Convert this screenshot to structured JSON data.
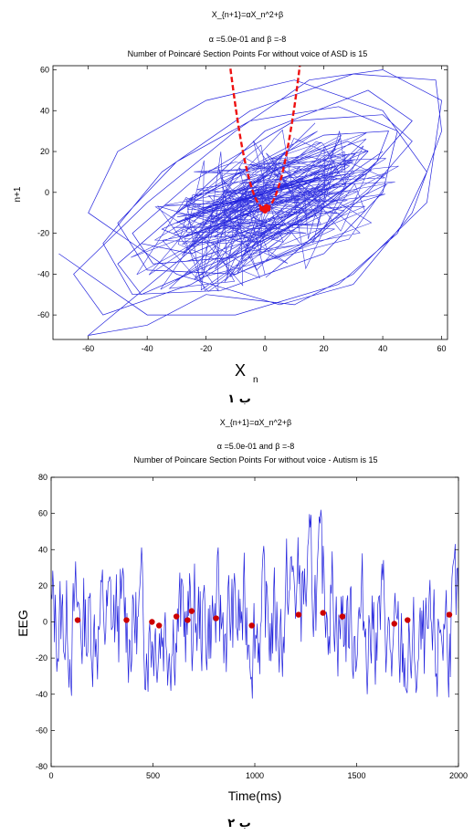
{
  "chart_data": [
    {
      "type": "line",
      "title_lines": [
        "X_{n+1}=αX_n^2+β",
        "α =5.0e-01 and  β =-8",
        "Number of Poincaré Section Points For without voice of  ASD is 15"
      ],
      "xlabel": "X",
      "xlabel_sub": "n",
      "ylabel": "n+1",
      "xlim": [
        -72,
        62
      ],
      "ylim": [
        -72,
        62
      ],
      "xticks": [
        -60,
        -40,
        -20,
        0,
        20,
        40,
        60
      ],
      "yticks": [
        -60,
        -40,
        -20,
        0,
        20,
        40,
        60
      ],
      "series_colors": {
        "trajectory": "#2222dd",
        "map": "#ee1111"
      },
      "map": {
        "alpha": 0.5,
        "beta": -8
      },
      "trajectory": {
        "x": [
          -70,
          -40,
          -10,
          25,
          45,
          55,
          40,
          10,
          -20,
          -50,
          -60,
          -30,
          5,
          30,
          50,
          60,
          58,
          30,
          -5,
          -35,
          -55,
          -45,
          -15,
          20,
          40,
          45,
          25,
          -5,
          -30,
          -50,
          -40,
          -10,
          15,
          35,
          50,
          40,
          10,
          -25,
          -45,
          -38,
          -12,
          18,
          38,
          42,
          20,
          -8,
          -30,
          -42,
          -25,
          0,
          25,
          35,
          28,
          5,
          -15,
          -35,
          -28,
          -5,
          15,
          30,
          22,
          0,
          -20,
          -30,
          -18,
          5,
          25,
          20,
          -2,
          -22,
          -12,
          8,
          18,
          10,
          -8,
          -15,
          -5,
          5,
          10,
          2,
          -3,
          -60,
          -40,
          -20,
          10,
          30,
          55,
          60,
          40,
          15,
          -10,
          -40,
          -65,
          -55,
          -25,
          5,
          35,
          50,
          35,
          0,
          -30,
          -50,
          -42,
          -10,
          20,
          40
        ],
        "y": [
          -30,
          -60,
          -60,
          -45,
          -20,
          10,
          40,
          55,
          45,
          20,
          -10,
          -40,
          -55,
          -45,
          -10,
          30,
          55,
          58,
          40,
          10,
          -25,
          -50,
          -48,
          -30,
          0,
          30,
          42,
          35,
          15,
          -15,
          -38,
          -40,
          -25,
          0,
          25,
          38,
          35,
          5,
          -20,
          -35,
          -32,
          -10,
          15,
          30,
          28,
          10,
          -10,
          -25,
          -30,
          -15,
          5,
          20,
          25,
          12,
          -5,
          -18,
          -22,
          -10,
          5,
          15,
          12,
          0,
          -10,
          -15,
          -8,
          2,
          10,
          8,
          0,
          -8,
          -5,
          2,
          6,
          3,
          -4,
          -6,
          -2,
          2,
          4,
          1,
          -2,
          -70,
          -65,
          -50,
          -55,
          -40,
          -5,
          45,
          60,
          55,
          30,
          -5,
          -40,
          -60,
          -45,
          -20,
          10,
          35,
          50,
          30,
          -10,
          -35,
          -50,
          -30,
          0,
          20
        ]
      }
    },
    {
      "type": "line",
      "title_lines": [
        "X_{n+1}=αX_n^2+β",
        "α =5.0e-01 and  β =-8",
        "Number of Poincare Section Points For without voice - Autism is 15"
      ],
      "xlabel": "Time(ms)",
      "ylabel": "EEG",
      "xlim": [
        0,
        2000
      ],
      "ylim": [
        -80,
        80
      ],
      "xticks": [
        0,
        500,
        1000,
        1500,
        2000
      ],
      "yticks": [
        -80,
        -60,
        -40,
        -20,
        0,
        20,
        40,
        60,
        80
      ],
      "series_colors": {
        "eeg": "#2222dd",
        "points": "#cc0000"
      },
      "markers": {
        "x": [
          130,
          370,
          495,
          530,
          615,
          670,
          690,
          810,
          985,
          1215,
          1335,
          1430,
          1685,
          1750,
          1955
        ],
        "y": [
          1,
          1,
          0,
          -2,
          3,
          1,
          6,
          2,
          -2,
          4,
          5,
          3,
          -1,
          1,
          4
        ]
      }
    }
  ],
  "captions": [
    "ب ۱",
    "ب ۲"
  ]
}
